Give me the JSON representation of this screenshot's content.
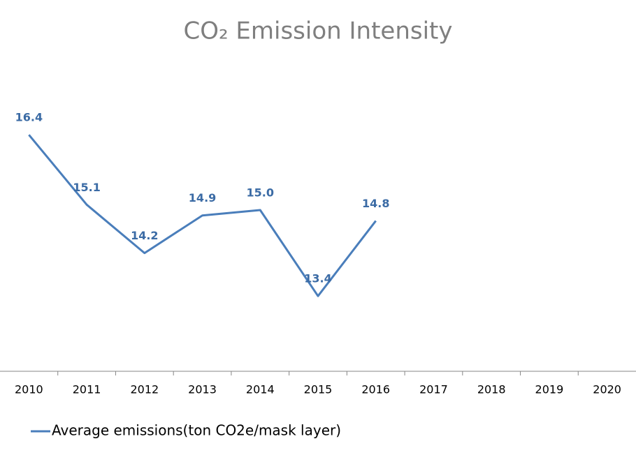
{
  "chart_data": {
    "type": "line",
    "title": "CO₂ Emission Intensity",
    "categories": [
      "2010",
      "2011",
      "2012",
      "2013",
      "2014",
      "2015",
      "2016",
      "2017",
      "2018",
      "2019",
      "2020"
    ],
    "series": [
      {
        "name": "Average emissions(ton CO2e/mask layer)",
        "color": "#4a7ebb",
        "values": [
          16.4,
          15.1,
          14.2,
          14.9,
          15.0,
          13.4,
          14.8,
          null,
          null,
          null,
          null
        ],
        "value_labels": [
          "16.4",
          "15.1",
          "14.2",
          "14.9",
          "15.0",
          "13.4",
          "14.8",
          null,
          null,
          null,
          null
        ]
      }
    ],
    "ylim": [
      12,
      18
    ],
    "legend": "bottom-left"
  }
}
